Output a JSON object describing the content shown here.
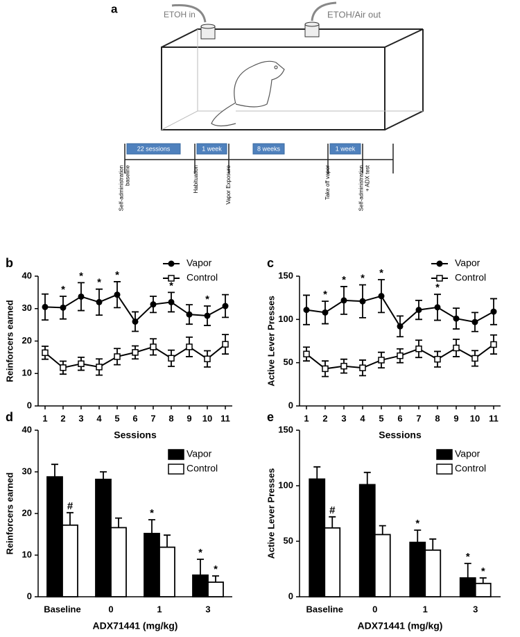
{
  "diagram": {
    "label": "a",
    "inlet": "ETOH in",
    "outlet": "ETOH/Air out",
    "phases": [
      "22 sessions",
      "1 week",
      "8 weeks",
      "1 week"
    ],
    "events": [
      [
        "Self-administration",
        "baseline"
      ],
      [
        "Habituation"
      ],
      [
        "Vapor Exposure"
      ],
      [
        "Take off vapor"
      ],
      [
        "Self-administration",
        "+ ADX test"
      ]
    ]
  },
  "chart_data": [
    {
      "type": "line",
      "panel": "b",
      "ylabel": "Reinforcers earned",
      "xlabel": "Sessions",
      "categories": [
        "1",
        "2",
        "3",
        "4",
        "5",
        "6",
        "7",
        "8",
        "9",
        "10",
        "11"
      ],
      "ylim": [
        0,
        40
      ],
      "yticks": [
        0,
        10,
        20,
        30,
        40
      ],
      "legend": "upper right",
      "series": [
        {
          "name": "Vapor",
          "color": "#000000",
          "marker": "circle",
          "values": [
            30.5,
            30.3,
            33.7,
            32,
            34.3,
            26,
            31.3,
            32,
            28.2,
            27.8,
            30.8
          ],
          "errors": [
            4,
            3.5,
            4.3,
            4,
            4,
            3,
            2.5,
            3,
            3,
            3,
            3.5
          ],
          "markers": [
            null,
            "*",
            "*",
            "*",
            "*",
            null,
            null,
            "*",
            null,
            "*",
            null
          ]
        },
        {
          "name": "Control",
          "color": "#000000",
          "marker": "open-square",
          "values": [
            16.4,
            11.8,
            13,
            12,
            15.2,
            16.5,
            18.2,
            14.7,
            18.2,
            14.5,
            19
          ],
          "errors": [
            2,
            2,
            2,
            2.5,
            2.5,
            2,
            2.5,
            2.5,
            3,
            2.5,
            3
          ]
        }
      ]
    },
    {
      "type": "line",
      "panel": "c",
      "ylabel": "Active Lever Presses",
      "xlabel": "Sessions",
      "categories": [
        "1",
        "2",
        "3",
        "4",
        "5",
        "6",
        "7",
        "8",
        "9",
        "10",
        "11"
      ],
      "ylim": [
        0,
        150
      ],
      "yticks": [
        0,
        50,
        100,
        150
      ],
      "legend": "upper right",
      "series": [
        {
          "name": "Vapor",
          "color": "#000000",
          "marker": "circle",
          "values": [
            111,
            108,
            122,
            121,
            127,
            92,
            111,
            114,
            101,
            97,
            109
          ],
          "errors": [
            17,
            13,
            16,
            19,
            19,
            12,
            11,
            15,
            12,
            11,
            15
          ],
          "markers": [
            null,
            "*",
            "*",
            "*",
            "*",
            null,
            null,
            "*",
            null,
            null,
            null
          ]
        },
        {
          "name": "Control",
          "color": "#000000",
          "marker": "open-square",
          "values": [
            60,
            43,
            46,
            44,
            53,
            58,
            66,
            54,
            67,
            55,
            71
          ],
          "errors": [
            8,
            9,
            8,
            9,
            9,
            8,
            10,
            9,
            10,
            9,
            11
          ]
        }
      ]
    },
    {
      "type": "bar",
      "panel": "d",
      "ylabel": "Reinforcers earned",
      "xlabel": "ADX71441 (mg/kg)",
      "categories": [
        "Baseline",
        "0",
        "1",
        "3"
      ],
      "ylim": [
        0,
        40
      ],
      "yticks": [
        0,
        10,
        20,
        30,
        40
      ],
      "legend": "upper right",
      "series": [
        {
          "name": "Vapor",
          "color": "#000000",
          "values": [
            28.8,
            28.2,
            15.2,
            5.2
          ],
          "errors": [
            3,
            1.8,
            3.3,
            3.8
          ],
          "markers": [
            null,
            null,
            "*",
            "*"
          ]
        },
        {
          "name": "Control",
          "color": "#ffffff",
          "values": [
            17.2,
            16.6,
            11.9,
            3.5
          ],
          "errors": [
            3,
            2.3,
            2.9,
            1.5
          ],
          "markers": [
            "#",
            null,
            null,
            "*"
          ]
        }
      ]
    },
    {
      "type": "bar",
      "panel": "e",
      "ylabel": "Active Lever Presses",
      "xlabel": "ADX71441 (mg/kg)",
      "categories": [
        "Baseline",
        "0",
        "1",
        "3"
      ],
      "ylim": [
        0,
        150
      ],
      "yticks": [
        0,
        50,
        100,
        150
      ],
      "legend": "upper right",
      "series": [
        {
          "name": "Vapor",
          "color": "#000000",
          "values": [
            106,
            101,
            49,
            17
          ],
          "errors": [
            11,
            11,
            11,
            13
          ],
          "markers": [
            null,
            null,
            "*",
            "*"
          ]
        },
        {
          "name": "Control",
          "color": "#ffffff",
          "values": [
            62,
            56,
            42,
            12
          ],
          "errors": [
            10,
            8,
            10,
            5
          ],
          "markers": [
            "#",
            null,
            null,
            "*"
          ]
        }
      ]
    }
  ]
}
